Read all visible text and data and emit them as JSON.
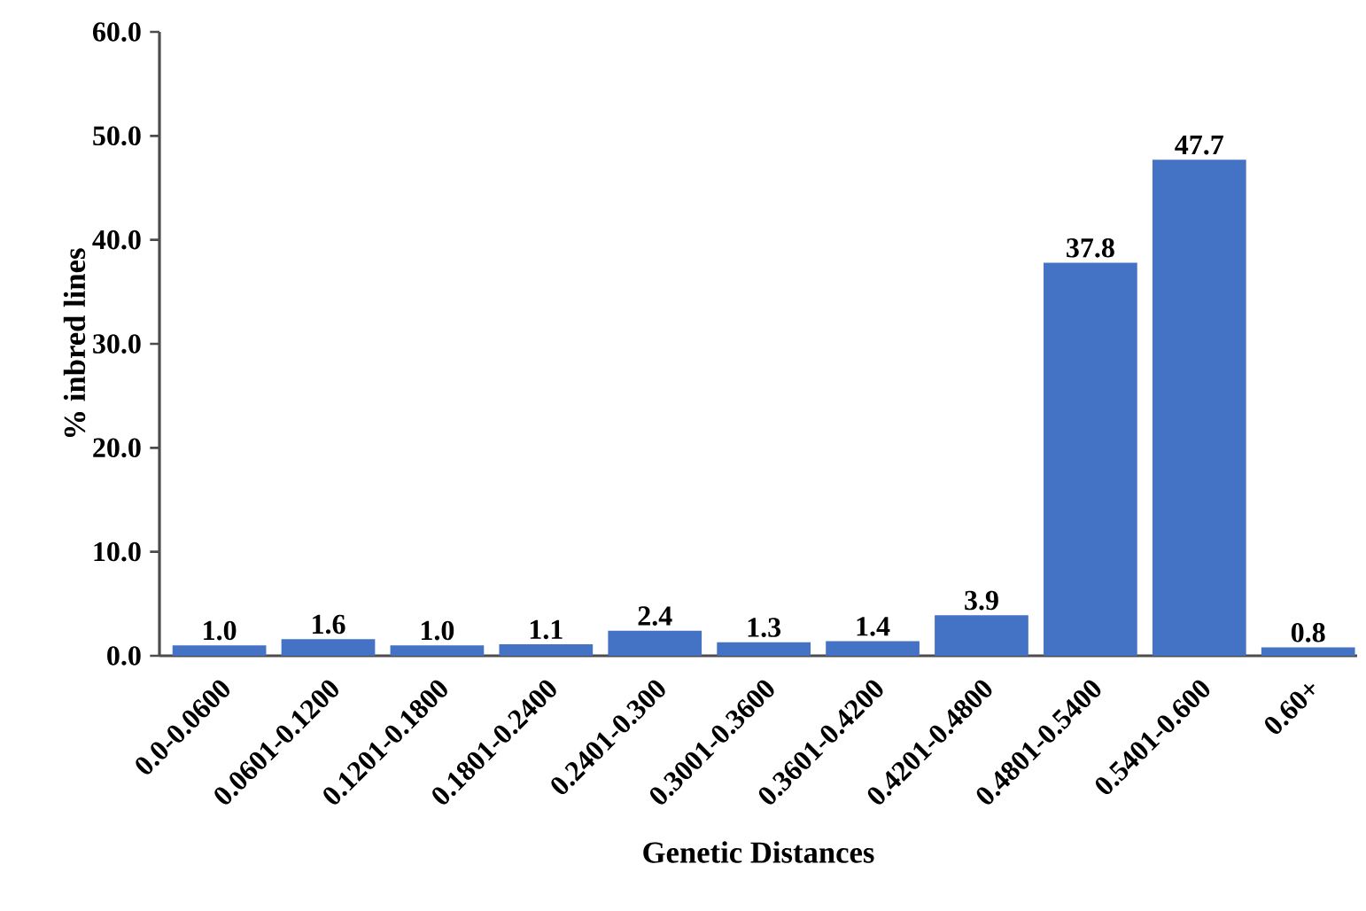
{
  "chart_data": {
    "type": "bar",
    "xlabel": "Genetic Distances",
    "ylabel": "% inbred lines",
    "categories": [
      "0.0-0.0600",
      "0.0601-0.1200",
      "0.1201-0.1800",
      "0.1801-0.2400",
      "0.2401-0.300",
      "0.3001-0.3600",
      "0.3601-0.4200",
      "0.4201-0.4800",
      "0.4801-0.5400",
      "0.5401-0.600",
      "0.60+"
    ],
    "values": [
      1.0,
      1.6,
      1.0,
      1.1,
      2.4,
      1.3,
      1.4,
      3.9,
      37.8,
      47.7,
      0.8
    ],
    "value_labels": [
      "1.0",
      "1.6",
      "1.0",
      "1.1",
      "2.4",
      "1.3",
      "1.4",
      "3.9",
      "37.8",
      "47.7",
      "0.8"
    ],
    "color": "#4472c4",
    "ylim": [
      0,
      60
    ],
    "yticks": [
      {
        "value": 0,
        "label": "0.0"
      },
      {
        "value": 10,
        "label": "10.0"
      },
      {
        "value": 20,
        "label": "20.0"
      },
      {
        "value": 30,
        "label": "30.0"
      },
      {
        "value": 40,
        "label": "40.0"
      },
      {
        "value": 50,
        "label": "50.0"
      },
      {
        "value": 60,
        "label": "60.0"
      }
    ]
  }
}
